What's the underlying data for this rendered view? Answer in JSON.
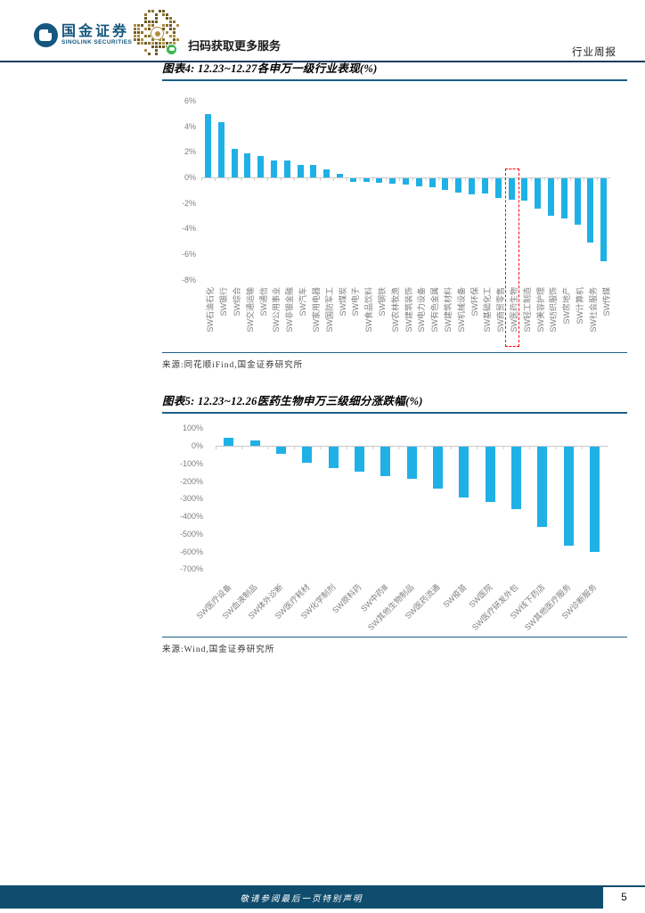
{
  "header": {
    "brand_cn": "国金证券",
    "brand_en": "SINOLINK SECURITIES",
    "qr_caption": "扫码获取更多服务",
    "report_type": "行业周报"
  },
  "figure4": {
    "title": "图表4: 12.23~12.27各申万一级行业表现(%)",
    "source": "来源:同花顺iFind,国金证券研究所"
  },
  "figure5": {
    "title": "图表5: 12.23~12.26医药生物申万三级细分涨跌幅(%)",
    "source": "来源:Wind,国金证券研究所"
  },
  "footer": {
    "disclaimer": "敬请参阅最后一页特别声明",
    "page_number": "5"
  },
  "colors": {
    "bar": "#1FB1E6",
    "highlight_box": "#FF0000",
    "header_rule": "#1B3C5F",
    "figure_rule": "#1D5F86",
    "footer_bar": "#0F4C6D",
    "axis_gray": "#C9C9C9",
    "label_gray": "#7F7F7F",
    "brand_blue": "#14567E"
  },
  "chart_data": [
    {
      "type": "bar",
      "title": "12.23~12.27各申万一级行业表现(%)",
      "xlabel": "",
      "ylabel": "",
      "ylim": [
        -8,
        6
      ],
      "grid": false,
      "legend": "none",
      "bar_color": "#1FB1E6",
      "ytick_labels": [
        "6%",
        "4%",
        "2%",
        "0%",
        "-2%",
        "-4%",
        "-6%",
        "-8%"
      ],
      "ytick_values": [
        6,
        4,
        2,
        0,
        -2,
        -4,
        -6,
        -8
      ],
      "categories": [
        "SW石油石化",
        "SW银行",
        "SW综合",
        "SW交通运输",
        "SW通信",
        "SW公用事业",
        "SW非银金融",
        "SW汽车",
        "SW家用电器",
        "SW国防军工",
        "SW煤炭",
        "SW电子",
        "SW食品饮料",
        "SW钢铁",
        "SW农林牧渔",
        "SW建筑装饰",
        "SW电力设备",
        "SW有色金属",
        "SW建筑材料",
        "SW机械设备",
        "SW环保",
        "SW基础化工",
        "SW商贸零售",
        "SW医药生物",
        "SW轻工制造",
        "SW美容护理",
        "SW纺织服饰",
        "SW房地产",
        "SW计算机",
        "SW社会服务",
        "SW传媒"
      ],
      "values": [
        4.95,
        4.35,
        2.2,
        1.9,
        1.7,
        1.35,
        1.3,
        1.0,
        0.95,
        0.6,
        0.3,
        -0.25,
        -0.3,
        -0.35,
        -0.4,
        -0.45,
        -0.6,
        -0.7,
        -0.9,
        -1.1,
        -1.25,
        -1.15,
        -1.55,
        -1.7,
        -1.75,
        -2.4,
        -2.9,
        -3.15,
        -3.6,
        -5.0,
        -6.5
      ],
      "highlight": {
        "category": "SW医药生物",
        "style": "red-dashed-box",
        "color": "#FF0000"
      }
    },
    {
      "type": "bar",
      "title": "12.23~12.26医药生物申万三级细分涨跌幅(%)",
      "xlabel": "",
      "ylabel": "",
      "ylim": [
        -700,
        100
      ],
      "grid": false,
      "legend": "none",
      "bar_color": "#1FB1E6",
      "ytick_labels": [
        "100%",
        "0%",
        "-100%",
        "-200%",
        "-300%",
        "-400%",
        "-500%",
        "-600%",
        "-700%"
      ],
      "ytick_values": [
        100,
        0,
        -100,
        -200,
        -300,
        -400,
        -500,
        -600,
        -700
      ],
      "categories": [
        "SW医疗设备",
        "SW血液制品",
        "SW体外诊断",
        "SW医疗耗材",
        "SW化学制剂",
        "SW原料药",
        "SW中药Ⅲ",
        "SW其他生物制品",
        "SW医药流通",
        "SW疫苗",
        "SW医院",
        "SW医疗研发外包",
        "SW线下药店",
        "SW其他医疗服务",
        "SW诊断服务"
      ],
      "values": [
        45,
        32,
        -42,
        -92,
        -122,
        -140,
        -168,
        -180,
        -238,
        -288,
        -315,
        -355,
        -455,
        -560,
        -595
      ]
    }
  ]
}
